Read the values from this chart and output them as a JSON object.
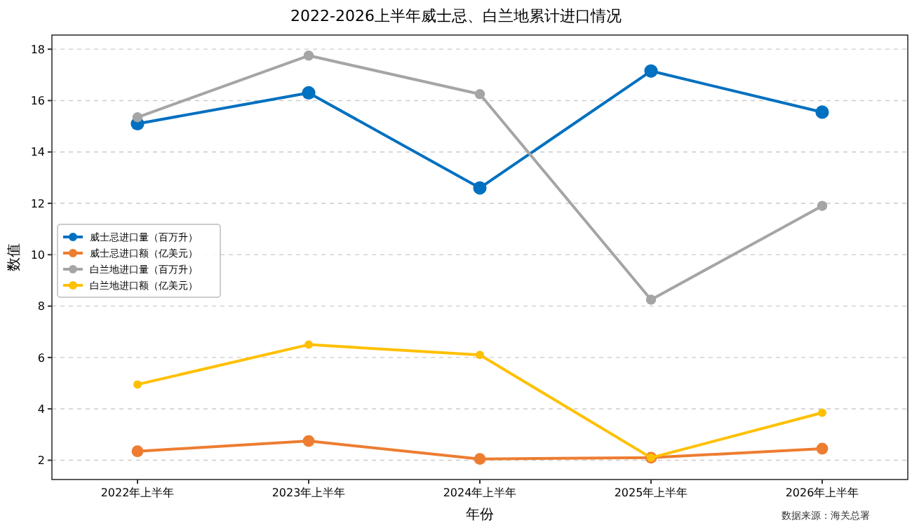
{
  "chart_data": {
    "type": "line",
    "title": "2022-2026上半年威士忌、白兰地累计进口情况",
    "xlabel": "年份",
    "ylabel": "数值",
    "categories": [
      "2022年上半年",
      "2023年上半年",
      "2024年上半年",
      "2025年上半年",
      "2026年上半年"
    ],
    "series": [
      {
        "name": "威士忌进口量（百万升）",
        "color": "#0070c0",
        "values": [
          15.1,
          16.3,
          12.6,
          17.15,
          15.55
        ]
      },
      {
        "name": "威士忌进口额（亿美元）",
        "color": "#ed7d31",
        "values": [
          2.35,
          2.75,
          2.05,
          2.1,
          2.45
        ]
      },
      {
        "name": "白兰地进口量（百万升）",
        "color": "#a5a5a5",
        "values": [
          15.35,
          17.75,
          16.25,
          8.25,
          11.9
        ]
      },
      {
        "name": "白兰地进口额（亿美元）",
        "color": "#ffc000",
        "values": [
          4.95,
          6.5,
          6.1,
          2.1,
          3.85
        ]
      }
    ],
    "ylim": [
      1.25,
      18.55
    ],
    "yticks": [
      2,
      4,
      6,
      8,
      10,
      12,
      14,
      16,
      18
    ],
    "grid": "y",
    "legend": "left",
    "marker": "circle",
    "line_style": "solid",
    "annotations": [
      "数据来源：海关总署"
    ]
  }
}
